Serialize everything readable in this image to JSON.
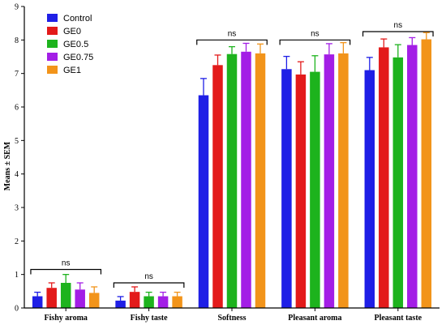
{
  "chart_data": {
    "type": "bar",
    "title": "",
    "xlabel": "",
    "ylabel": "Means ± SEM",
    "ylim": [
      0,
      9
    ],
    "yticks": [
      0,
      1,
      2,
      3,
      4,
      5,
      6,
      7,
      8,
      9
    ],
    "grid": false,
    "legend_position": "top-left",
    "categories": [
      "Fishy aroma",
      "Fishy taste",
      "Softness",
      "Pleasant aroma",
      "Pleasant taste"
    ],
    "series": [
      {
        "name": "Control",
        "color": "#1f1fe6",
        "values": [
          0.35,
          0.22,
          6.35,
          7.13,
          7.1
        ],
        "errors": [
          0.12,
          0.12,
          0.5,
          0.38,
          0.38
        ]
      },
      {
        "name": "GE0",
        "color": "#e31a1a",
        "values": [
          0.6,
          0.48,
          7.25,
          6.97,
          7.78
        ],
        "errors": [
          0.15,
          0.15,
          0.3,
          0.38,
          0.25
        ]
      },
      {
        "name": "GE0.5",
        "color": "#1db31d",
        "values": [
          0.75,
          0.35,
          7.58,
          7.05,
          7.48
        ],
        "errors": [
          0.25,
          0.12,
          0.22,
          0.48,
          0.38
        ]
      },
      {
        "name": "GE0.75",
        "color": "#a31ee6",
        "values": [
          0.55,
          0.35,
          7.65,
          7.57,
          7.85
        ],
        "errors": [
          0.2,
          0.12,
          0.25,
          0.32,
          0.22
        ]
      },
      {
        "name": "GE1",
        "color": "#f2941a",
        "values": [
          0.45,
          0.35,
          7.6,
          7.6,
          8.02
        ],
        "errors": [
          0.18,
          0.12,
          0.28,
          0.32,
          0.2
        ]
      }
    ],
    "significance": [
      {
        "label": "ns",
        "y": 1.15
      },
      {
        "label": "ns",
        "y": 0.75
      },
      {
        "label": "ns",
        "y": 8.0
      },
      {
        "label": "ns",
        "y": 8.0
      },
      {
        "label": "ns",
        "y": 8.25
      }
    ]
  }
}
